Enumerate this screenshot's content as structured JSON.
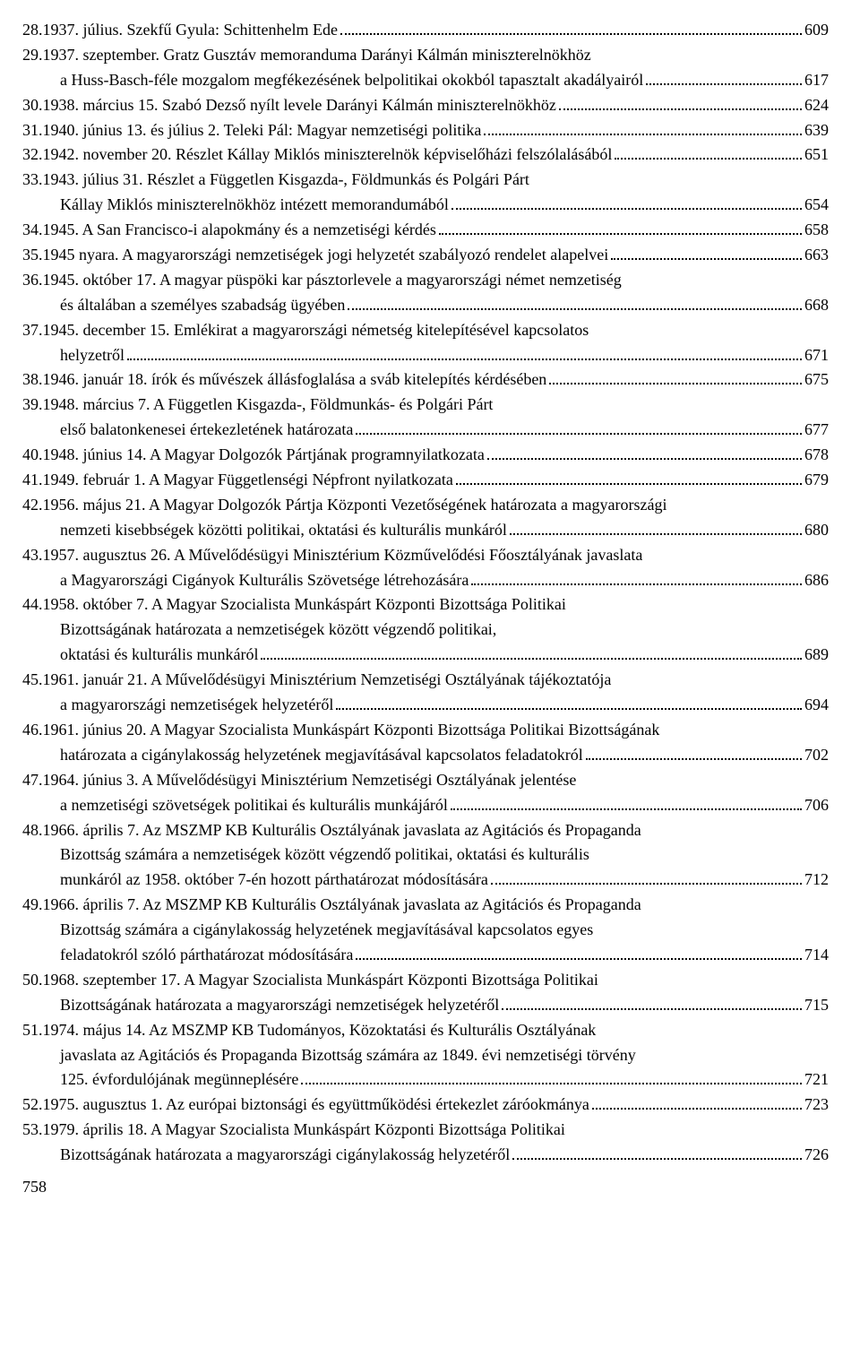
{
  "entries": [
    {
      "n": "28.",
      "lines": [
        {
          "t": "1937. július. Szekfű Gyula: Schittenhelm Ede",
          "p": "609"
        }
      ]
    },
    {
      "n": "29.",
      "lines": [
        {
          "t": "1937. szeptember. Gratz Gusztáv memoranduma Darányi Kálmán miniszterelnökhöz"
        },
        {
          "t": "a Huss-Basch-féle mozgalom megfékezésének belpolitikai okokból tapasztalt akadályairól",
          "p": "617"
        }
      ]
    },
    {
      "n": "30.",
      "lines": [
        {
          "t": "1938. március 15. Szabó Dezső nyílt levele Darányi Kálmán miniszterelnökhöz",
          "p": "624"
        }
      ]
    },
    {
      "n": "31.",
      "lines": [
        {
          "t": "1940. június 13. és július 2. Teleki Pál: Magyar nemzetiségi politika",
          "p": "639"
        }
      ]
    },
    {
      "n": "32.",
      "lines": [
        {
          "t": "1942. november 20. Részlet Kállay Miklós miniszterelnök képviselőházi felszólalásából",
          "p": "651"
        }
      ]
    },
    {
      "n": "33.",
      "lines": [
        {
          "t": "1943. július 31. Részlet a Független Kisgazda-, Földmunkás és Polgári Párt"
        },
        {
          "t": "Kállay Miklós miniszterelnökhöz intézett memorandumából",
          "p": "654"
        }
      ]
    },
    {
      "n": "34.",
      "lines": [
        {
          "t": "1945. A San Francisco-i alapokmány és a nemzetiségi kérdés",
          "p": "658"
        }
      ]
    },
    {
      "n": "35.",
      "lines": [
        {
          "t": " 1945 nyara. A magyarországi nemzetiségek jogi helyzetét szabályozó rendelet alapelvei",
          "p": "663"
        }
      ]
    },
    {
      "n": "36.",
      "lines": [
        {
          "t": "1945. október 17. A magyar püspöki kar pásztorlevele a magyarországi német nemzetiség"
        },
        {
          "t": "és általában a személyes szabadság ügyében",
          "p": "668"
        }
      ]
    },
    {
      "n": "37.",
      "lines": [
        {
          "t": "1945. december 15. Emlékirat a magyarországi németség kitelepítésével kapcsolatos"
        },
        {
          "t": "helyzetről",
          "p": "671"
        }
      ]
    },
    {
      "n": "38.",
      "lines": [
        {
          "t": "1946. január 18. írók és művészek állásfoglalása a sváb kitelepítés kérdésében",
          "p": "675"
        }
      ]
    },
    {
      "n": "39.",
      "lines": [
        {
          "t": "1948. március 7. A Független Kisgazda-, Földmunkás- és Polgári Párt"
        },
        {
          "t": "első balatonkenesei értekezletének határozata",
          "p": "677"
        }
      ]
    },
    {
      "n": "40.",
      "lines": [
        {
          "t": " 1948. június 14. A Magyar Dolgozók Pártjának programnyilatkozata",
          "p": "678"
        }
      ]
    },
    {
      "n": "41.",
      "lines": [
        {
          "t": "1949. február 1. A Magyar Függetlenségi Népfront nyilatkozata",
          "p": "679"
        }
      ]
    },
    {
      "n": "42.",
      "lines": [
        {
          "t": "1956. május 21. A Magyar Dolgozók Pártja Központi Vezetőségének határozata a magyarországi"
        },
        {
          "t": "nemzeti kisebbségek közötti politikai, oktatási és kulturális munkáról",
          "p": "680"
        }
      ]
    },
    {
      "n": "43.",
      "lines": [
        {
          "t": "1957. augusztus 26. A Művelődésügyi Minisztérium Közművelődési Főosztályának javaslata"
        },
        {
          "t": "a Magyarországi Cigányok Kulturális Szövetsége létrehozására",
          "p": "686"
        }
      ]
    },
    {
      "n": "44.",
      "lines": [
        {
          "t": "1958. október 7. A Magyar Szocialista Munkáspárt Központi Bizottsága Politikai"
        },
        {
          "t": "Bizottságának határozata a nemzetiségek között végzendő politikai,"
        },
        {
          "t": "oktatási és kulturális munkáról",
          "p": "689"
        }
      ]
    },
    {
      "n": "45.",
      "lines": [
        {
          "t": "1961. január 21. A Művelődésügyi Minisztérium Nemzetiségi Osztályának tájékoztatója"
        },
        {
          "t": "a magyarországi nemzetiségek helyzetéről",
          "p": "694"
        }
      ]
    },
    {
      "n": "46.",
      "lines": [
        {
          "t": "1961. június 20. A Magyar Szocialista Munkáspárt Központi Bizottsága Politikai Bizottságának"
        },
        {
          "t": "határozata a cigánylakosság helyzetének megjavításával kapcsolatos feladatokról",
          "p": "702"
        }
      ]
    },
    {
      "n": "47.",
      "lines": [
        {
          "t": "1964. június 3. A Művelődésügyi Minisztérium Nemzetiségi Osztályának jelentése"
        },
        {
          "t": "a nemzetiségi szövetségek politikai és kulturális munkájáról",
          "p": "706"
        }
      ]
    },
    {
      "n": "48.",
      "lines": [
        {
          "t": "1966. április 7. Az MSZMP KB Kulturális Osztályának javaslata az Agitációs és Propaganda"
        },
        {
          "t": "Bizottság számára a nemzetiségek között végzendő politikai, oktatási és kulturális"
        },
        {
          "t": "munkáról az 1958. október 7-én hozott párthatározat módosítására",
          "p": "712"
        }
      ]
    },
    {
      "n": "49.",
      "lines": [
        {
          "t": "1966. április 7. Az MSZMP KB Kulturális Osztályának javaslata az Agitációs és Propaganda"
        },
        {
          "t": "Bizottság számára a cigánylakosság helyzetének megjavításával kapcsolatos egyes"
        },
        {
          "t": "feladatokról szóló párthatározat módosítására",
          "p": "714"
        }
      ]
    },
    {
      "n": "50.",
      "lines": [
        {
          "t": "1968. szeptember 17. A Magyar Szocialista Munkáspárt Központi Bizottsága Politikai"
        },
        {
          "t": "Bizottságának határozata a magyarországi nemzetiségek helyzetéről",
          "p": "715"
        }
      ]
    },
    {
      "n": "51.",
      "lines": [
        {
          "t": "1974. május 14. Az MSZMP KB Tudományos, Közoktatási és Kulturális Osztályának"
        },
        {
          "t": "javaslata az Agitációs és Propaganda Bizottság számára az 1849. évi nemzetiségi törvény"
        },
        {
          "t": "125. évfordulójának megünneplésére",
          "p": "721"
        }
      ]
    },
    {
      "n": "52.",
      "lines": [
        {
          "t": "1975. augusztus 1. Az európai biztonsági és együttműködési értekezlet záróokmánya",
          "p": "723"
        }
      ]
    },
    {
      "n": "53.",
      "lines": [
        {
          "t": "1979. április 18. A Magyar Szocialista Munkáspárt Központi Bizottsága Politikai"
        },
        {
          "t": "Bizottságának határozata a magyarországi cigánylakosság helyzetéről",
          "p": "726"
        }
      ]
    }
  ],
  "footer": "758"
}
